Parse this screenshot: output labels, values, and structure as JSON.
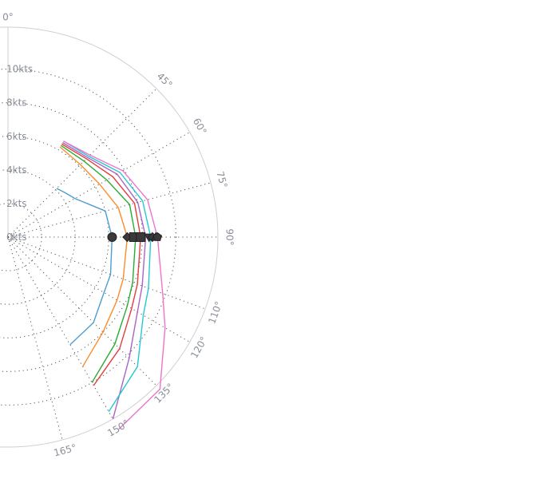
{
  "chart_data": {
    "type": "polar-line",
    "title": "",
    "radial_axis": {
      "unit": "kts",
      "range": [
        0,
        12.5
      ],
      "ticks": [
        0,
        2,
        4,
        6,
        8,
        10
      ],
      "tick_labels": [
        "0kts",
        "2kts",
        "4kts",
        "6kts",
        "8kts",
        "10kts"
      ]
    },
    "angular_axis": {
      "rays": [
        0,
        45,
        60,
        75,
        90,
        110,
        120,
        135,
        150,
        165
      ],
      "labels": [
        "0°",
        "45°",
        "60°",
        "75°",
        "90°",
        "110°",
        "120°",
        "135°",
        "150°",
        "165°"
      ]
    },
    "series": [
      {
        "color": "#4c9ed0",
        "points": [
          [
            45,
            4.1
          ],
          [
            52,
            4.3
          ],
          [
            60,
            4.6
          ],
          [
            75,
            6.0
          ],
          [
            90,
            6.2
          ],
          [
            110,
            6.5
          ],
          [
            120,
            6.6
          ],
          [
            135,
            7.2
          ],
          [
            150,
            7.4
          ]
        ]
      },
      {
        "color": "#ff8b2a",
        "points": [
          [
            30,
            6.2
          ],
          [
            45,
            6.1
          ],
          [
            60,
            6.3
          ],
          [
            75,
            6.8
          ],
          [
            90,
            7.1
          ],
          [
            110,
            7.3
          ],
          [
            120,
            7.5
          ],
          [
            135,
            8.0
          ],
          [
            150,
            8.9
          ]
        ]
      },
      {
        "color": "#2aab35",
        "points": [
          [
            30,
            6.3
          ],
          [
            45,
            6.4
          ],
          [
            60,
            6.8
          ],
          [
            75,
            7.5
          ],
          [
            90,
            7.6
          ],
          [
            110,
            7.9
          ],
          [
            120,
            8.2
          ],
          [
            135,
            9.0
          ],
          [
            150,
            10.0
          ]
        ]
      },
      {
        "color": "#e33d3d",
        "points": [
          [
            30,
            6.4
          ],
          [
            45,
            6.6
          ],
          [
            60,
            7.2
          ],
          [
            75,
            7.8
          ],
          [
            90,
            7.9
          ],
          [
            110,
            8.2
          ],
          [
            120,
            8.5
          ],
          [
            135,
            9.4
          ],
          [
            150,
            10.2
          ]
        ]
      },
      {
        "color": "#a965c5",
        "points": [
          [
            30,
            6.5
          ],
          [
            45,
            6.7
          ],
          [
            60,
            7.5
          ],
          [
            75,
            8.0
          ],
          [
            90,
            8.2
          ],
          [
            110,
            8.5
          ],
          [
            120,
            8.9
          ],
          [
            135,
            10.2
          ],
          [
            150,
            12.5
          ]
        ]
      },
      {
        "color": "#23c8d2",
        "points": [
          [
            30,
            6.6
          ],
          [
            45,
            6.8
          ],
          [
            60,
            7.7
          ],
          [
            75,
            8.3
          ],
          [
            90,
            8.5
          ],
          [
            110,
            8.9
          ],
          [
            120,
            9.3
          ],
          [
            135,
            10.9
          ],
          [
            150,
            12.0
          ]
        ]
      },
      {
        "color": "#ee74cb",
        "points": [
          [
            30,
            6.6
          ],
          [
            45,
            6.9
          ],
          [
            60,
            7.9
          ],
          [
            75,
            8.6
          ],
          [
            90,
            8.9
          ],
          [
            110,
            9.8
          ],
          [
            120,
            10.8
          ],
          [
            135,
            12.8
          ],
          [
            150,
            13.2
          ]
        ]
      }
    ],
    "markers": [
      {
        "angle": 90,
        "r": 6.2,
        "shape": "circle"
      },
      {
        "angle": 90,
        "r": 7.1,
        "shape": "diamond"
      },
      {
        "angle": 90,
        "r": 7.5,
        "shape": "square"
      },
      {
        "angle": 90,
        "r": 7.9,
        "shape": "square"
      },
      {
        "angle": 90,
        "r": 8.4,
        "shape": "triangle-down"
      },
      {
        "angle": 90,
        "r": 8.6,
        "shape": "diamond"
      },
      {
        "angle": 90,
        "r": 8.8,
        "shape": "triangle-up"
      },
      {
        "angle": 90,
        "r": 8.9,
        "shape": "pentagon"
      }
    ]
  }
}
